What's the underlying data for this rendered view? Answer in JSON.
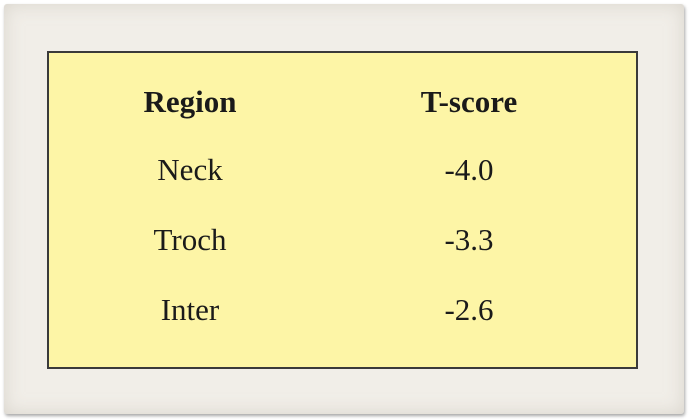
{
  "table": {
    "headers": [
      "Region",
      "T-score"
    ],
    "rows": [
      [
        "Neck",
        "-4.0"
      ],
      [
        "Troch",
        "-3.3"
      ],
      [
        "Inter",
        "-2.6"
      ]
    ]
  },
  "colors": {
    "background": "#fdf5a6",
    "paper": "#f1eee8",
    "border": "#3a3a3a"
  }
}
